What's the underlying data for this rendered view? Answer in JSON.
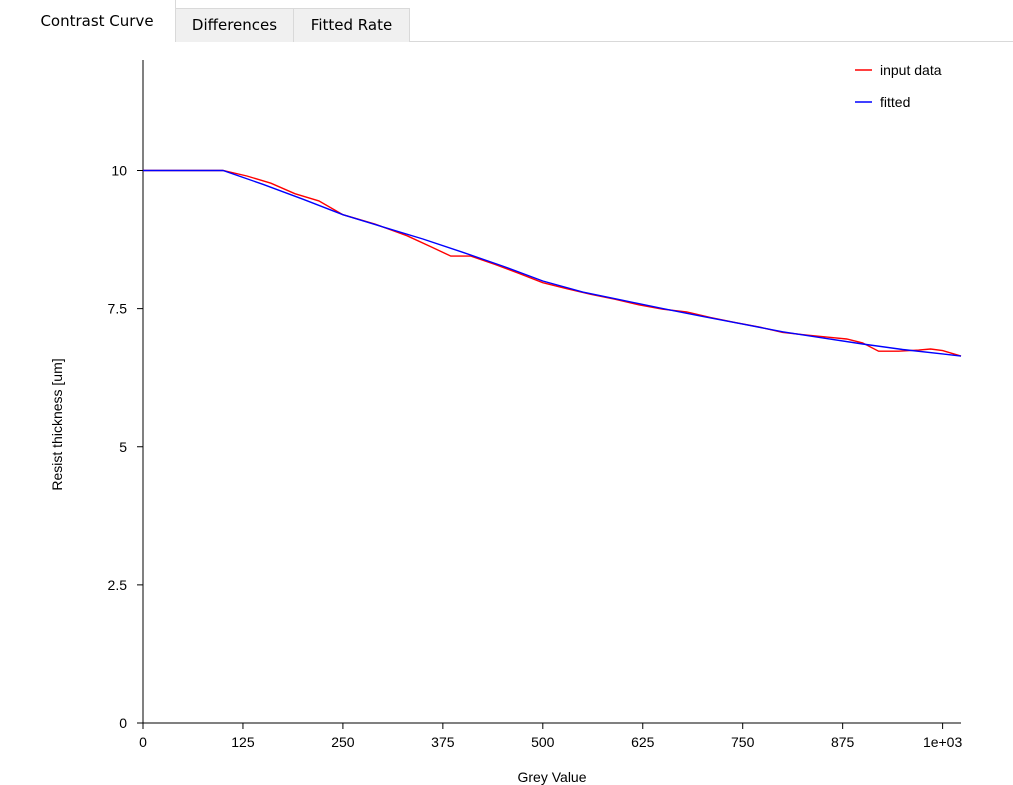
{
  "tabs": [
    {
      "label": "Contrast Curve",
      "active": true
    },
    {
      "label": "Differences",
      "active": false
    },
    {
      "label": "Fitted Rate",
      "active": false
    }
  ],
  "chart_data": {
    "type": "line",
    "title": "",
    "xlabel": "Grey Value",
    "ylabel": "Resist thickness [um]",
    "xlim": [
      0,
      1023
    ],
    "ylim": [
      0,
      12
    ],
    "x_ticks": [
      0,
      125,
      250,
      375,
      500,
      625,
      750,
      875,
      1000
    ],
    "x_tick_labels": [
      "0",
      "125",
      "250",
      "375",
      "500",
      "625",
      "750",
      "875",
      "1e+03"
    ],
    "y_ticks": [
      0,
      2.5,
      5,
      7.5,
      10
    ],
    "y_tick_labels": [
      "0",
      "2.5",
      "5",
      "7.5",
      "10"
    ],
    "grid": false,
    "legend_position": "top-right",
    "series": [
      {
        "name": "input data",
        "color": "#ff0000",
        "x": [
          0,
          50,
          100,
          130,
          160,
          190,
          220,
          250,
          290,
          330,
          360,
          385,
          410,
          440,
          470,
          500,
          530,
          560,
          590,
          620,
          650,
          680,
          710,
          740,
          770,
          800,
          830,
          860,
          880,
          900,
          920,
          945,
          970,
          985,
          1000,
          1023
        ],
        "y": [
          10,
          10,
          10,
          9.9,
          9.77,
          9.58,
          9.45,
          9.2,
          9.03,
          8.82,
          8.62,
          8.45,
          8.45,
          8.3,
          8.14,
          7.97,
          7.86,
          7.76,
          7.67,
          7.57,
          7.49,
          7.44,
          7.34,
          7.25,
          7.17,
          7.07,
          7.02,
          6.98,
          6.95,
          6.88,
          6.73,
          6.73,
          6.75,
          6.77,
          6.74,
          6.64
        ]
      },
      {
        "name": "fitted",
        "color": "#0000ff",
        "x": [
          0,
          50,
          100,
          150,
          200,
          250,
          300,
          350,
          400,
          450,
          500,
          550,
          600,
          650,
          700,
          750,
          800,
          850,
          900,
          950,
          1000,
          1023
        ],
        "y": [
          10,
          10,
          10,
          9.75,
          9.48,
          9.2,
          8.98,
          8.76,
          8.52,
          8.27,
          8.0,
          7.8,
          7.65,
          7.5,
          7.36,
          7.22,
          7.08,
          6.97,
          6.86,
          6.76,
          6.68,
          6.64
        ]
      }
    ]
  }
}
